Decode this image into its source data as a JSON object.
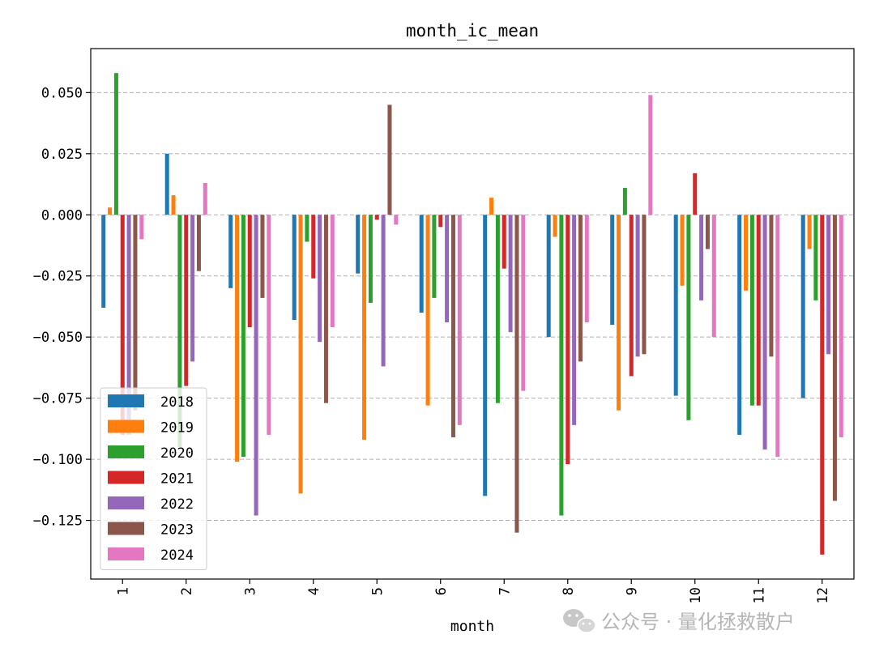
{
  "watermark": {
    "text": "公众号 · 量化拯救散户",
    "icon": "wechat-icon"
  },
  "chart_data": {
    "type": "bar",
    "title": "month_ic_mean",
    "xlabel": "month",
    "ylabel": "",
    "ylim": [
      -0.149,
      0.068
    ],
    "yticks": [
      0.05,
      0.025,
      0.0,
      -0.025,
      -0.05,
      -0.075,
      -0.1,
      -0.125
    ],
    "ytick_labels": [
      "0.050",
      "0.025",
      "0.000",
      "−0.025",
      "−0.050",
      "−0.075",
      "−0.100",
      "−0.125"
    ],
    "grid": "y-dashed",
    "legend_position": "lower-left",
    "categories": [
      "1",
      "2",
      "3",
      "4",
      "5",
      "6",
      "7",
      "8",
      "9",
      "10",
      "11",
      "12"
    ],
    "series": [
      {
        "name": "2018",
        "color": "#1f77b4",
        "values": [
          -0.038,
          0.025,
          -0.03,
          -0.043,
          -0.024,
          -0.04,
          -0.115,
          -0.05,
          -0.045,
          -0.074,
          -0.09,
          -0.075
        ]
      },
      {
        "name": "2019",
        "color": "#ff7f0e",
        "values": [
          0.003,
          0.008,
          -0.101,
          -0.114,
          -0.092,
          -0.078,
          0.007,
          -0.009,
          -0.08,
          -0.029,
          -0.031,
          -0.014
        ]
      },
      {
        "name": "2020",
        "color": "#2ca02c",
        "values": [
          0.058,
          -0.095,
          -0.099,
          -0.011,
          -0.036,
          -0.034,
          -0.077,
          -0.123,
          0.011,
          -0.084,
          -0.078,
          -0.035
        ]
      },
      {
        "name": "2021",
        "color": "#d62728",
        "values": [
          -0.09,
          -0.07,
          -0.046,
          -0.026,
          -0.002,
          -0.005,
          -0.022,
          -0.102,
          -0.066,
          0.017,
          -0.078,
          -0.139
        ]
      },
      {
        "name": "2022",
        "color": "#9467bd",
        "values": [
          -0.09,
          -0.06,
          -0.123,
          -0.052,
          -0.062,
          -0.044,
          -0.048,
          -0.086,
          -0.058,
          -0.035,
          -0.096,
          -0.057
        ]
      },
      {
        "name": "2023",
        "color": "#8c564b",
        "values": [
          -0.08,
          -0.023,
          -0.034,
          -0.077,
          0.045,
          -0.091,
          -0.13,
          -0.06,
          -0.057,
          -0.014,
          -0.058,
          -0.117
        ]
      },
      {
        "name": "2024",
        "color": "#e377c2",
        "values": [
          -0.01,
          0.013,
          -0.09,
          -0.046,
          -0.004,
          -0.086,
          -0.072,
          -0.044,
          0.049,
          -0.05,
          -0.099,
          -0.091
        ]
      }
    ]
  }
}
